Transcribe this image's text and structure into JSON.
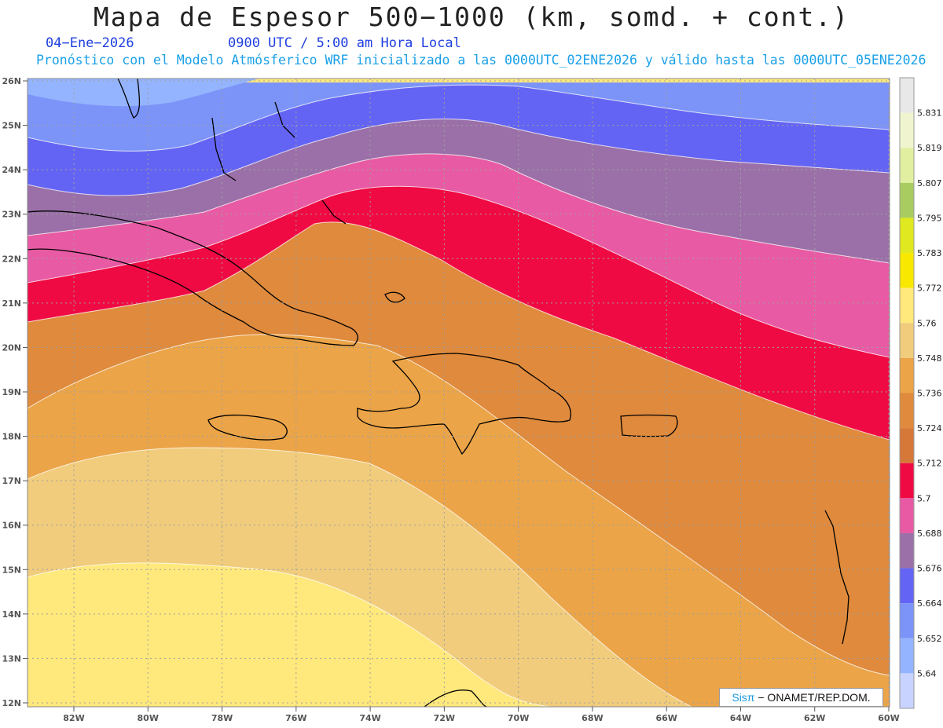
{
  "header": {
    "title": "Mapa de Espesor 500−1000 (km, somd. + cont.)",
    "date": "04−Ene−2026",
    "time": "0900 UTC / 5:00 am Hora Local",
    "model_line": "Pronóstico con el Modelo Atmósferico WRF inicializado a las 0000UTC_02ENE2026 y válido hasta las  0000UTC_05ENE2026"
  },
  "map": {
    "lat_labels": [
      "26N",
      "25N",
      "24N",
      "23N",
      "22N",
      "21N",
      "20N",
      "19N",
      "18N",
      "17N",
      "16N",
      "15N",
      "14N",
      "13N",
      "12N"
    ],
    "lon_labels": [
      "82W",
      "80W",
      "78W",
      "76W",
      "74W",
      "72W",
      "70W",
      "68W",
      "66W",
      "64W",
      "62W",
      "60W"
    ]
  },
  "legend": {
    "labels": [
      "5.831",
      "5.819",
      "5.807",
      "5.795",
      "5.783",
      "5.772",
      "5.76",
      "5.748",
      "5.736",
      "5.724",
      "5.712",
      "5.7",
      "5.688",
      "5.676",
      "5.664",
      "5.652",
      "5.64"
    ],
    "colors": [
      "#e8e8e8",
      "#f0f5cf",
      "#e0f0a0",
      "#a8cc60",
      "#e0e820",
      "#f8e800",
      "#ffe87c",
      "#f0cc7c",
      "#eba448",
      "#df8a3c",
      "#d67838",
      "#f00a44",
      "#e85aa4",
      "#9b70a8",
      "#6464f4",
      "#7c94f8",
      "#94b4ff",
      "#c8d4ff"
    ]
  },
  "credit": {
    "brand": "Sisπ",
    "text": " − ONAMET/REP.DOM."
  }
}
